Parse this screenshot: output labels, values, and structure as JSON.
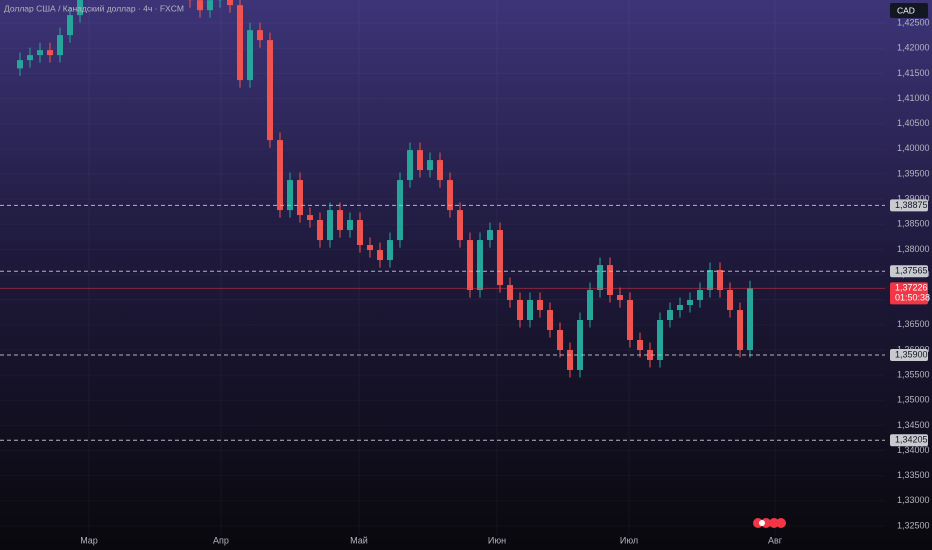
{
  "chart_data": {
    "type": "candlestick",
    "title": "Доллар США / Канадский доллар · 4ч · FXCM",
    "currency": "CAD",
    "up_color": "#26a69a",
    "down_color": "#ef5350",
    "x": [
      0,
      1,
      2,
      3,
      4,
      5,
      6,
      7,
      8,
      9,
      10,
      11,
      12,
      13,
      14,
      15,
      16,
      17,
      18,
      19,
      20,
      21,
      22,
      23,
      24,
      25,
      26,
      27,
      28,
      29,
      30,
      31,
      32,
      33,
      34,
      35,
      36,
      37,
      38,
      39,
      40,
      41,
      42,
      43,
      44,
      45,
      46,
      47,
      48,
      49,
      50,
      51,
      52,
      53,
      54,
      55,
      56,
      57,
      58,
      59,
      60,
      61,
      62,
      63,
      64,
      65,
      66,
      67,
      68,
      69,
      70,
      71,
      72,
      73
    ],
    "open": [
      1.416,
      1.41764,
      1.41864,
      1.41963,
      1.41864,
      1.42261,
      1.42659,
      1.43156,
      1.43554,
      1.43752,
      1.43554,
      1.43951,
      1.43752,
      1.4415,
      1.43951,
      1.43554,
      1.43752,
      1.43355,
      1.42957,
      1.42758,
      1.42957,
      1.43057,
      1.42858,
      1.41367,
      1.42361,
      1.42162,
      1.40174,
      1.38782,
      1.39379,
      1.38683,
      1.38584,
      1.38186,
      1.38782,
      1.38385,
      1.38584,
      1.38087,
      1.37987,
      1.37788,
      1.38186,
      1.39379,
      1.39975,
      1.39578,
      1.39776,
      1.39379,
      1.38782,
      1.38186,
      1.37192,
      1.38186,
      1.38385,
      1.37291,
      1.36993,
      1.36596,
      1.36993,
      1.36794,
      1.36397,
      1.35999,
      1.35602,
      1.36596,
      1.37192,
      1.37689,
      1.37093,
      1.36993,
      1.36198,
      1.35999,
      1.358,
      1.36596,
      1.36794,
      1.36894,
      1.36993,
      1.37192,
      1.3759,
      1.37192,
      1.36794,
      1.35999
    ],
    "close": [
      1.41764,
      1.41864,
      1.41963,
      1.41864,
      1.42261,
      1.42659,
      1.43156,
      1.43554,
      1.43752,
      1.43554,
      1.43951,
      1.43752,
      1.4415,
      1.43951,
      1.43554,
      1.43752,
      1.43355,
      1.42957,
      1.42758,
      1.42957,
      1.43057,
      1.42858,
      1.41367,
      1.42361,
      1.42162,
      1.40174,
      1.38782,
      1.39379,
      1.38683,
      1.38584,
      1.38186,
      1.38782,
      1.38385,
      1.38584,
      1.38087,
      1.37987,
      1.37788,
      1.38186,
      1.39379,
      1.39975,
      1.39578,
      1.39776,
      1.39379,
      1.38782,
      1.38186,
      1.37192,
      1.38186,
      1.38385,
      1.37291,
      1.36993,
      1.36596,
      1.36993,
      1.36794,
      1.36397,
      1.35999,
      1.35602,
      1.36596,
      1.37192,
      1.37689,
      1.37093,
      1.36993,
      1.36198,
      1.35999,
      1.358,
      1.36596,
      1.36794,
      1.36894,
      1.36993,
      1.37192,
      1.3759,
      1.37192,
      1.36794,
      1.35999,
      1.37226
    ],
    "high": [
      1.41914,
      1.42014,
      1.42113,
      1.42113,
      1.42411,
      1.42809,
      1.43306,
      1.43704,
      1.43902,
      1.43902,
      1.44101,
      1.44101,
      1.443,
      1.443,
      1.44101,
      1.43902,
      1.43902,
      1.43505,
      1.43107,
      1.43107,
      1.43207,
      1.43207,
      1.43008,
      1.42511,
      1.42511,
      1.42312,
      1.40324,
      1.39529,
      1.39529,
      1.38833,
      1.38734,
      1.38932,
      1.38932,
      1.38734,
      1.38734,
      1.38237,
      1.38137,
      1.38336,
      1.39529,
      1.40125,
      1.40125,
      1.39926,
      1.39926,
      1.39529,
      1.38932,
      1.38336,
      1.38336,
      1.38535,
      1.38535,
      1.37441,
      1.37143,
      1.37143,
      1.37143,
      1.36944,
      1.36547,
      1.36149,
      1.36746,
      1.37342,
      1.37839,
      1.37839,
      1.37243,
      1.37143,
      1.36348,
      1.36149,
      1.36746,
      1.36944,
      1.37044,
      1.37143,
      1.37342,
      1.3774,
      1.3774,
      1.37342,
      1.36944,
      1.37376
    ],
    "low": [
      1.4145,
      1.41614,
      1.41714,
      1.41714,
      1.41714,
      1.42111,
      1.42509,
      1.43006,
      1.43404,
      1.43404,
      1.43404,
      1.43602,
      1.43602,
      1.43801,
      1.43404,
      1.43404,
      1.43205,
      1.42807,
      1.42608,
      1.42608,
      1.42807,
      1.42708,
      1.41217,
      1.41217,
      1.42012,
      1.40024,
      1.38632,
      1.38632,
      1.38533,
      1.38434,
      1.38036,
      1.38036,
      1.38235,
      1.38235,
      1.37937,
      1.37837,
      1.37638,
      1.37638,
      1.38036,
      1.39229,
      1.39428,
      1.39428,
      1.39229,
      1.38632,
      1.38036,
      1.37042,
      1.37042,
      1.38036,
      1.37141,
      1.36843,
      1.36446,
      1.36446,
      1.36644,
      1.36247,
      1.35849,
      1.35452,
      1.35452,
      1.36446,
      1.37042,
      1.36943,
      1.36843,
      1.36048,
      1.35849,
      1.3565,
      1.3565,
      1.36446,
      1.36644,
      1.36744,
      1.36843,
      1.37042,
      1.37042,
      1.36644,
      1.35849,
      1.35849
    ],
    "xlim": [
      -2,
      86.5
    ],
    "xticks": [
      {
        "value": 6.9,
        "label": "Мар"
      },
      {
        "value": 20.1,
        "label": "Апр"
      },
      {
        "value": 33.9,
        "label": "Май"
      },
      {
        "value": 47.7,
        "label": "Июн"
      },
      {
        "value": 60.9,
        "label": "Июл"
      },
      {
        "value": 75.5,
        "label": "Авг"
      }
    ],
    "ylim": [
      1.3232,
      1.4296
    ],
    "yticks": [
      {
        "value": 1.325,
        "label": "1,32500"
      },
      {
        "value": 1.33,
        "label": "1,33000"
      },
      {
        "value": 1.335,
        "label": "1,33500"
      },
      {
        "value": 1.34,
        "label": "1,34000"
      },
      {
        "value": 1.345,
        "label": "1,34500"
      },
      {
        "value": 1.35,
        "label": "1,35000"
      },
      {
        "value": 1.355,
        "label": "1,35500"
      },
      {
        "value": 1.36,
        "label": "1,36000"
      },
      {
        "value": 1.365,
        "label": "1,36500"
      },
      {
        "value": 1.37,
        "label": "1,37000"
      },
      {
        "value": 1.375,
        "label": "1,37500"
      },
      {
        "value": 1.38,
        "label": "1,38000"
      },
      {
        "value": 1.385,
        "label": "1,38500"
      },
      {
        "value": 1.39,
        "label": "1,39000"
      },
      {
        "value": 1.395,
        "label": "1,39500"
      },
      {
        "value": 1.4,
        "label": "1,40000"
      },
      {
        "value": 1.405,
        "label": "1,40500"
      },
      {
        "value": 1.41,
        "label": "1,41000"
      },
      {
        "value": 1.415,
        "label": "1,41500"
      },
      {
        "value": 1.42,
        "label": "1,42000"
      },
      {
        "value": 1.425,
        "label": "1,42500"
      }
    ],
    "price_lines": [
      {
        "value": 1.38875,
        "label": "1,38875"
      },
      {
        "value": 1.37565,
        "label": "1,37565"
      },
      {
        "value": 1.359,
        "label": "1,35900"
      },
      {
        "value": 1.34205,
        "label": "1,34205"
      }
    ],
    "last_price": {
      "value": 1.37226,
      "label": "1,37226",
      "countdown": "01:50:38"
    }
  }
}
